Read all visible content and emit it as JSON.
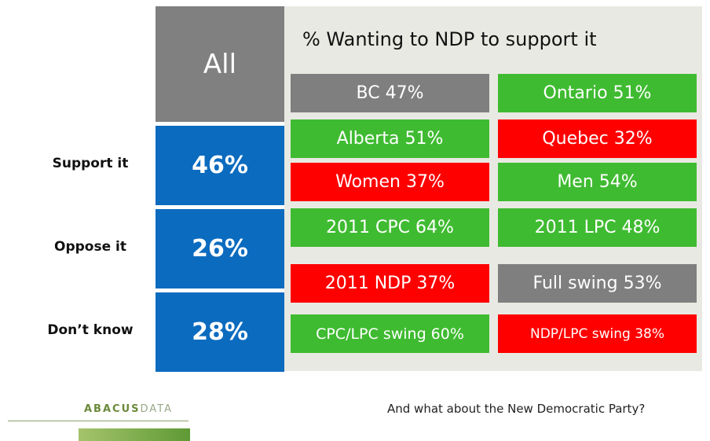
{
  "all": {
    "header": "All",
    "rows": [
      {
        "label": "Support it",
        "value": "46%"
      },
      {
        "label": "Oppose it",
        "value": "26%"
      },
      {
        "label": "Don’t know",
        "value": "28%"
      }
    ]
  },
  "panel": {
    "title": "% Wanting to NDP to support it",
    "cells": [
      {
        "text": "BC 47%",
        "color": "#7f7f7f"
      },
      {
        "text": "Ontario 51%",
        "color": "#3fbb31"
      },
      {
        "text": "Alberta 51%",
        "color": "#3fbb31"
      },
      {
        "text": "Quebec 32%",
        "color": "#ff0000"
      },
      {
        "text": "Women 37%",
        "color": "#ff0000"
      },
      {
        "text": "Men 54%",
        "color": "#3fbb31"
      },
      {
        "text": "2011 CPC 64%",
        "color": "#3fbb31"
      },
      {
        "text": "2011 LPC 48%",
        "color": "#3fbb31"
      },
      {
        "text": "2011 NDP 37%",
        "color": "#ff0000"
      },
      {
        "text": "Full swing 53%",
        "color": "#7f7f7f"
      },
      {
        "text": "CPC/LPC swing 60%",
        "color": "#3fbb31"
      },
      {
        "text": "NDP/LPC swing 38%",
        "color": "#ff0000"
      }
    ]
  },
  "logo": {
    "word1": "ABACUS",
    "word2": "DATA"
  },
  "footer": "And what about the New Democratic Party?"
}
